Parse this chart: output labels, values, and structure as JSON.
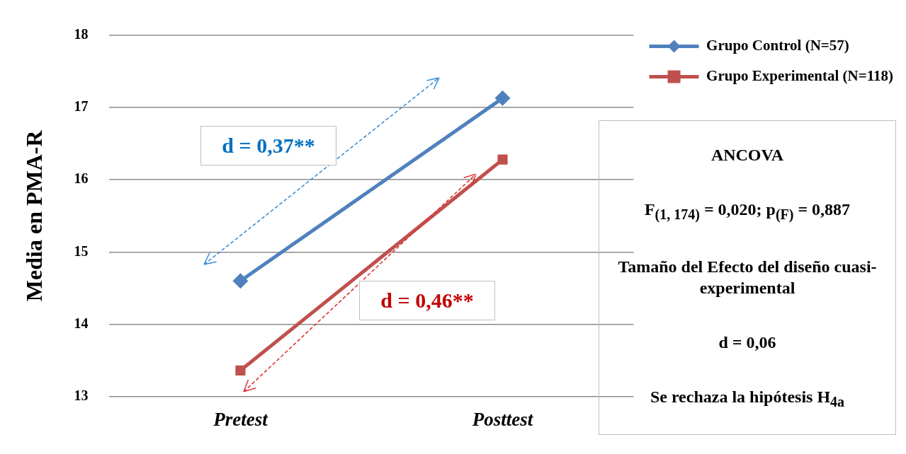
{
  "chart_data": {
    "type": "line",
    "ylabel": "Media en PMA-R",
    "categories": [
      "Pretest",
      "Posttest"
    ],
    "series": [
      {
        "name": "Grupo Control (N=57)",
        "color": "#4f81bd",
        "values": [
          14.6,
          17.13
        ],
        "marker": "diamond"
      },
      {
        "name": "Grupo Experimental (N=118)",
        "color": "#c0504d",
        "values": [
          13.36,
          16.28
        ],
        "marker": "square"
      }
    ],
    "ylim": [
      13,
      18
    ],
    "yticks": [
      13,
      14,
      15,
      16,
      17,
      18
    ],
    "grid": "y",
    "legend": "top right",
    "line_style": "solid",
    "annotations": [
      "d = 0,37**",
      "d = 0,46**",
      "ANCOVA",
      "F$_{(1, 174)}$ = 0,020; p$_{(F)}$ = 0,887",
      "Tamaño del Efecto del diseño cuasi-experimental",
      "d = 0,06",
      "Se rechaza la hipótesis H$_{4a}$"
    ]
  }
}
